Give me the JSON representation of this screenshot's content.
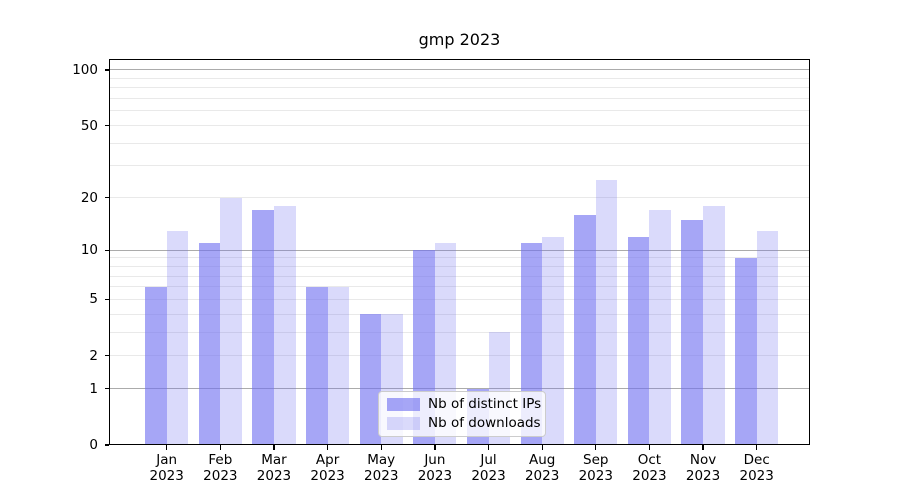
{
  "chart_data": {
    "type": "bar",
    "title": "gmp 2023",
    "x_categories": [
      "Jan",
      "Feb",
      "Mar",
      "Apr",
      "May",
      "Jun",
      "Jul",
      "Aug",
      "Sep",
      "Oct",
      "Nov",
      "Dec"
    ],
    "x_year_label": "2023",
    "series": [
      {
        "name": "Nb of distinct IPs",
        "values": [
          6,
          11,
          17,
          6,
          4,
          10,
          1,
          11,
          16,
          12,
          15,
          9
        ],
        "color": "#7070f0",
        "alpha": 0.62
      },
      {
        "name": "Nb of downloads",
        "values": [
          13,
          20,
          18,
          6,
          4,
          11,
          3,
          12,
          25,
          17,
          18,
          13
        ],
        "color": "#7070f0",
        "alpha": 0.26
      }
    ],
    "y_axis": {
      "scale": "log10(1+x)",
      "tick_values": [
        0,
        1,
        2,
        5,
        10,
        20,
        50,
        100
      ],
      "tick_labels": [
        "0",
        "1",
        "2",
        "5",
        "10",
        "20",
        "50",
        "100"
      ],
      "range": [
        0,
        110
      ]
    },
    "grid": {
      "major_values": [
        1,
        10,
        100
      ],
      "minor_values": [
        2,
        3,
        4,
        5,
        6,
        7,
        8,
        9,
        20,
        30,
        40,
        50,
        60,
        70,
        80,
        90
      ],
      "major_color": "#ababab",
      "minor_color": "#e9e9e9"
    },
    "legend": {
      "position": "lower center"
    },
    "colors": {
      "axis": "#000000",
      "background": "#ffffff"
    }
  }
}
